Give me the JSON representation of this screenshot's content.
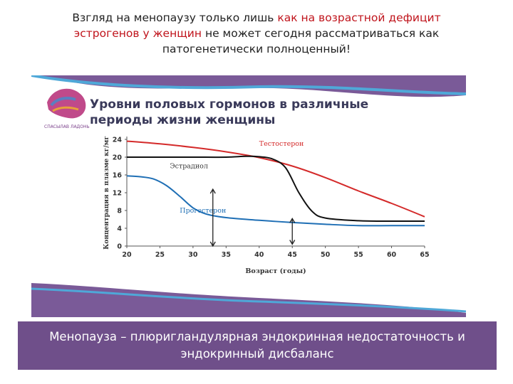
{
  "header": {
    "line1_a": "Взгляд на менопаузу только лишь ",
    "line1_b": "как на  возрастной дефицит",
    "line2_a": "эстрогенов у женщин",
    "line2_b": " не может сегодня рассматриваться как",
    "line3": "патогенетически полноценный!"
  },
  "logo": {
    "text": "СПАСЫЛАВ ЛАДОНЬ"
  },
  "chart_heading": {
    "line1": "Уровни половых гормонов в различные",
    "line2": "периоды жизни женщины"
  },
  "chart_data": {
    "type": "line",
    "title": "Уровни половых гормонов в различные периоды жизни женщины",
    "xlabel": "Возраст (годы)",
    "ylabel": "Концентрация в плазме кг/мг",
    "xlim": [
      20,
      65
    ],
    "ylim": [
      0,
      24
    ],
    "xticks": [
      20,
      25,
      30,
      35,
      40,
      45,
      50,
      55,
      60,
      65
    ],
    "yticks": [
      0,
      4,
      8,
      12,
      16,
      20,
      24
    ],
    "grid": false,
    "series": [
      {
        "name": "Тестостерон",
        "color": "#d42a2a",
        "x": [
          20,
          25,
          30,
          35,
          40,
          45,
          50,
          55,
          60,
          65
        ],
        "y": [
          23.6,
          23.0,
          22.2,
          21.2,
          19.9,
          18.0,
          15.4,
          12.4,
          9.6,
          6.6
        ]
      },
      {
        "name": "Эстрадиол",
        "color": "#111111",
        "x": [
          20,
          25,
          30,
          35,
          38,
          40,
          42,
          44,
          46,
          48,
          50,
          55,
          60,
          65
        ],
        "y": [
          20.0,
          20.0,
          20.0,
          20.0,
          20.2,
          20.1,
          19.6,
          17.6,
          12.0,
          7.8,
          6.3,
          5.7,
          5.6,
          5.6
        ]
      },
      {
        "name": "Прогестерон",
        "color": "#1f6fb5",
        "x": [
          20,
          22,
          24,
          26,
          28,
          30,
          32,
          35,
          40,
          45,
          50,
          55,
          60,
          65
        ],
        "y": [
          15.8,
          15.6,
          15.1,
          13.6,
          11.2,
          8.6,
          7.2,
          6.4,
          5.8,
          5.3,
          4.9,
          4.6,
          4.6,
          4.6
        ]
      }
    ],
    "annotations": [
      {
        "type": "double-arrow",
        "x": 33,
        "y_from": 0,
        "y_to": 12.8
      },
      {
        "type": "double-arrow",
        "x": 45,
        "y_from": 0.4,
        "y_to": 6.2
      }
    ]
  },
  "footer": {
    "line1": "Менопауза – плюригландулярная  эндокринная недостаточность  и",
    "line2": "эндокринный  дисбаланс"
  },
  "colors": {
    "accent_purple": "#6f4f8a",
    "highlight_red": "#c0141c",
    "wave_blue": "#4fa8d8"
  }
}
